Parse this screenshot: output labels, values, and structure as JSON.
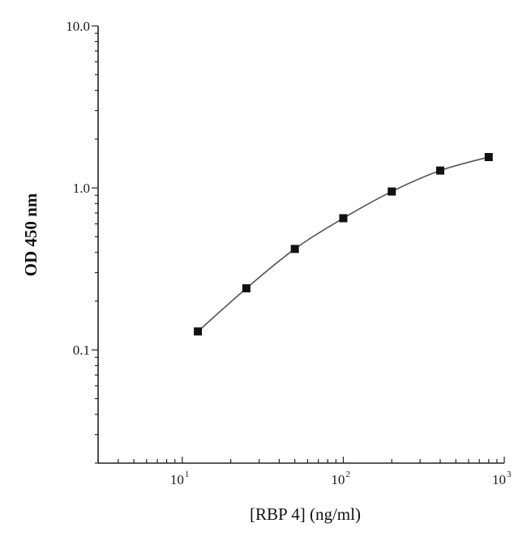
{
  "chart_data": {
    "type": "line",
    "xscale": "log",
    "yscale": "log",
    "xlim": [
      3,
      1000
    ],
    "ylim": [
      0.02,
      10
    ],
    "grid": false,
    "xlabel": "[RBP 4] (ng/ml)",
    "ylabel": "OD 450 nm",
    "x_ticks": [
      {
        "base": "10",
        "exp": "1",
        "value": 10
      },
      {
        "base": "10",
        "exp": "2",
        "value": 100
      },
      {
        "base": "10",
        "exp": "3",
        "value": 1000
      }
    ],
    "y_ticks": [
      {
        "label": "10.0",
        "value": 10
      },
      {
        "label": "1.0",
        "value": 1
      },
      {
        "label": "0.1",
        "value": 0.1
      }
    ],
    "series": [
      {
        "x": [
          12.5,
          25,
          50,
          100,
          200,
          400,
          800
        ],
        "y": [
          0.13,
          0.24,
          0.42,
          0.65,
          0.95,
          1.28,
          1.55
        ]
      }
    ],
    "colors": {
      "line": "#555555",
      "marker": "#111111",
      "axis": "#222222"
    }
  }
}
